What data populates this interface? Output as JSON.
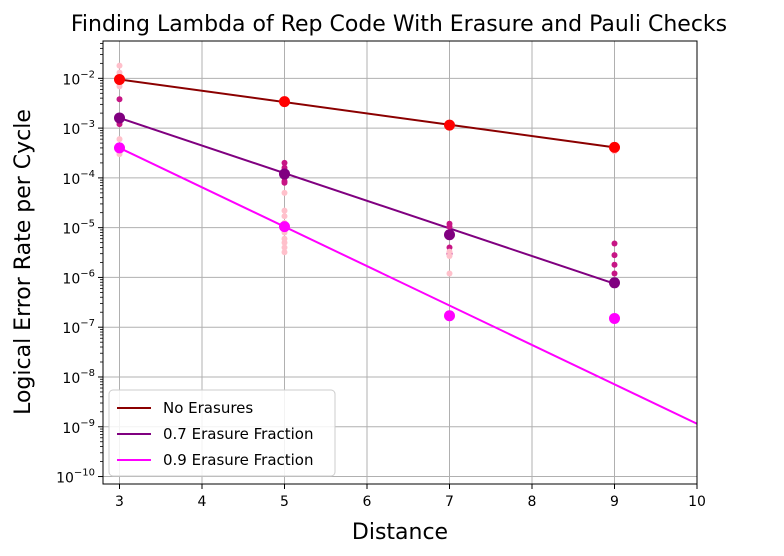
{
  "chart_data": {
    "type": "scatter",
    "title": "Finding Lambda of Rep Code With Erasure and Pauli Checks",
    "xlabel": "Distance",
    "ylabel": "Logical Error Rate per Cycle",
    "xlim": [
      2.8,
      10
    ],
    "ylim_log10": [
      -10.15,
      -1.25
    ],
    "yscale": "log",
    "grid": true,
    "legend_position": "lower-left",
    "x_ticks": [
      3,
      4,
      5,
      6,
      7,
      8,
      9,
      10
    ],
    "x_tick_labels": [
      "3",
      "4",
      "5",
      "6",
      "7",
      "8",
      "9",
      "10"
    ],
    "y_ticks_log10": [
      -2,
      -3,
      -4,
      -5,
      -6,
      -7,
      -8,
      -9,
      -10
    ],
    "y_tick_labels": [
      "10",
      "10",
      "10",
      "10",
      "10",
      "10",
      "10",
      "10",
      "10"
    ],
    "y_tick_exponents": [
      "−2",
      "−3",
      "−4",
      "−5",
      "−6",
      "−7",
      "−8",
      "−9",
      "−10"
    ],
    "series": [
      {
        "name": "No Erasures",
        "color": "#8b0000",
        "marker_color": "#ff0000",
        "sample_color": "#ffc0cb",
        "fit": {
          "x": [
            3,
            9
          ],
          "y": [
            0.0095,
            0.00041
          ]
        },
        "means": {
          "x": [
            3,
            5,
            7,
            9
          ],
          "y": [
            0.0095,
            0.0034,
            0.00115,
            0.00041
          ]
        },
        "samples": {
          "x": [
            3,
            3,
            3,
            3,
            5,
            5,
            7,
            7,
            9,
            9
          ],
          "y": [
            0.018,
            0.013,
            0.0082,
            0.0069,
            0.0037,
            0.0031,
            0.00125,
            0.00105,
            0.00045,
            0.00034
          ]
        }
      },
      {
        "name": "0.7 Erasure Fraction",
        "color": "#800080",
        "marker_color": "#800080",
        "sample_color": "#c71585",
        "fit": {
          "x": [
            3,
            9
          ],
          "y": [
            0.0016,
            7.5e-07
          ]
        },
        "means": {
          "x": [
            3,
            5,
            7,
            9
          ],
          "y": [
            0.0016,
            0.00012,
            7.2e-06,
            7.8e-07
          ]
        },
        "samples": {
          "x": [
            3,
            3,
            3,
            5,
            5,
            5,
            5,
            5,
            7,
            7,
            7,
            7,
            7,
            9,
            9,
            9,
            9
          ],
          "y": [
            0.0038,
            0.0014,
            0.0012,
            0.0002,
            0.00016,
            0.0001,
            8.5e-05,
            8e-05,
            1.2e-05,
            1.05e-05,
            6.5e-06,
            4e-06,
            3e-06,
            4.8e-06,
            2.8e-06,
            1.8e-06,
            1.2e-06
          ]
        }
      },
      {
        "name": "0.9 Erasure Fraction",
        "color": "#ff00ff",
        "marker_color": "#ff00ff",
        "sample_color": "#ffc0cb",
        "fit": {
          "x": [
            3,
            10
          ],
          "y": [
            0.0004,
            1.15e-09
          ]
        },
        "means": {
          "x": [
            3,
            5,
            7,
            9
          ],
          "y": [
            0.0004,
            1.05e-05,
            1.7e-07,
            1.5e-07
          ]
        },
        "samples": {
          "x": [
            3,
            3,
            3,
            5,
            5,
            5,
            5,
            5,
            5,
            5,
            5,
            5,
            7,
            7,
            7
          ],
          "y": [
            0.0006,
            0.00042,
            0.0003,
            5e-05,
            2.2e-05,
            1.7e-05,
            1.25e-05,
            8e-06,
            6e-06,
            5e-06,
            4e-06,
            3.2e-06,
            3.3e-06,
            2.7e-06,
            1.2e-06
          ]
        }
      }
    ]
  }
}
